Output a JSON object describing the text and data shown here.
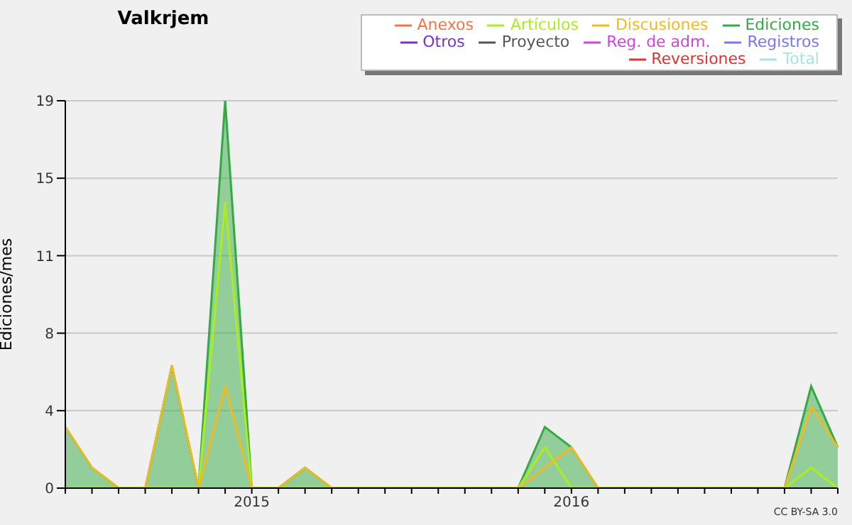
{
  "chart_data": {
    "type": "line",
    "title": "Valkrjem",
    "ylabel": "Ediciones/mes",
    "categories": [
      null,
      null,
      null,
      null,
      null,
      null,
      null,
      "2015",
      null,
      null,
      null,
      null,
      null,
      null,
      null,
      null,
      null,
      null,
      null,
      "2016",
      null,
      null,
      null,
      null,
      null,
      null,
      null,
      null,
      null,
      null
    ],
    "series": [
      {
        "name": "Total",
        "color": "#a8e4e0",
        "values": [
          null,
          null,
          null,
          null,
          null,
          null,
          null,
          null,
          null,
          null,
          null,
          null,
          null,
          null,
          null,
          null,
          null,
          null,
          null,
          null,
          null,
          null,
          null,
          null,
          null,
          null,
          null,
          null,
          null,
          null
        ]
      },
      {
        "name": "Ediciones",
        "type": "area",
        "color": "#33aa44",
        "values": [
          3,
          1,
          0,
          0,
          6,
          0,
          19,
          0,
          0,
          1,
          0,
          0,
          0,
          0,
          0,
          0,
          0,
          0,
          3,
          2,
          0,
          0,
          0,
          0,
          0,
          0,
          0,
          0,
          5,
          2
        ]
      },
      {
        "name": "Artículos",
        "color": "#aaee22",
        "values": [
          0,
          0,
          0,
          0,
          0,
          0,
          14,
          0,
          0,
          0,
          0,
          0,
          0,
          0,
          0,
          0,
          0,
          0,
          2,
          0,
          0,
          0,
          0,
          0,
          0,
          0,
          0,
          0,
          1,
          0
        ]
      },
      {
        "name": "Discusiones",
        "color": "#eebb22",
        "values": [
          3,
          1,
          0,
          0,
          6,
          0,
          5,
          0,
          0,
          1,
          0,
          0,
          0,
          0,
          0,
          0,
          0,
          0,
          1,
          2,
          0,
          0,
          0,
          0,
          0,
          0,
          0,
          0,
          4,
          2
        ]
      },
      {
        "name": "Proyecto",
        "color": "#555555",
        "values": [
          null,
          null,
          null,
          null,
          null,
          null,
          null,
          null,
          null,
          null,
          null,
          null,
          null,
          null,
          null,
          null,
          null,
          null,
          null,
          null,
          null,
          null,
          null,
          null,
          null,
          null,
          null,
          null,
          null,
          null
        ]
      },
      {
        "name": "Anexos",
        "color": "#ee7744",
        "values": [
          null,
          null,
          null,
          null,
          null,
          null,
          null,
          null,
          null,
          null,
          null,
          null,
          null,
          null,
          null,
          null,
          null,
          null,
          null,
          null,
          null,
          null,
          null,
          null,
          null,
          null,
          null,
          null,
          null,
          null
        ]
      },
      {
        "name": "Otros",
        "color": "#7733cc",
        "values": [
          null,
          null,
          null,
          null,
          null,
          null,
          null,
          null,
          null,
          null,
          null,
          null,
          null,
          null,
          null,
          null,
          null,
          null,
          null,
          null,
          null,
          null,
          null,
          null,
          null,
          null,
          null,
          null,
          null,
          null
        ]
      },
      {
        "name": "Registros",
        "color": "#7777ee",
        "values": [
          null,
          null,
          null,
          null,
          null,
          null,
          null,
          null,
          null,
          null,
          null,
          null,
          null,
          null,
          null,
          null,
          null,
          null,
          null,
          null,
          null,
          null,
          null,
          null,
          null,
          null,
          null,
          null,
          null,
          null
        ]
      },
      {
        "name": "Reg. de adm.",
        "color": "#cc44dd",
        "values": [
          null,
          null,
          null,
          null,
          null,
          null,
          null,
          null,
          null,
          null,
          null,
          null,
          null,
          null,
          null,
          null,
          null,
          null,
          null,
          null,
          null,
          null,
          null,
          null,
          null,
          null,
          null,
          null,
          null,
          null
        ]
      },
      {
        "name": "Reversiones",
        "color": "#dd3333",
        "values": [
          null,
          null,
          null,
          null,
          null,
          null,
          null,
          null,
          null,
          null,
          null,
          null,
          null,
          null,
          null,
          null,
          null,
          null,
          null,
          null,
          null,
          null,
          null,
          null,
          null,
          null,
          null,
          null,
          null,
          null
        ]
      }
    ],
    "ylim": [
      0,
      19
    ],
    "yticks": [
      0,
      {
        "value": 3.8,
        "label": "4"
      },
      {
        "value": 7.6,
        "label": "8"
      },
      {
        "value": 11.4,
        "label": "11"
      },
      {
        "value": 15.2,
        "label": "15"
      },
      19
    ],
    "grid": "y",
    "legend": "top right",
    "marker": "none",
    "annotations": [
      "CC BY-SA 3.0"
    ]
  }
}
